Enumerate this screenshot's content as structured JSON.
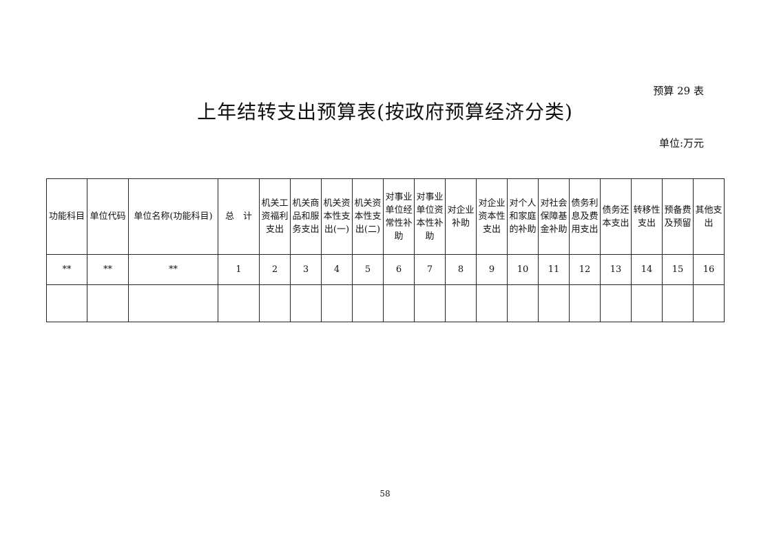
{
  "doc": {
    "code": "预算 29 表",
    "title": "上年结转支出预算表(按政府预算经济分类)",
    "unit": "单位:万元",
    "page_number": "58"
  },
  "table": {
    "headers": [
      "功能科目",
      "单位代码",
      "单位名称(功能科目)",
      "总　计",
      "机关工\n资福利\n支出",
      "机关商\n品和服\n务支出",
      "机关资\n本性支\n出(一)",
      "机关资\n本性支\n出(二)",
      "对事业\n单位经\n常性补\n助",
      "对事业\n单位资\n本性补\n助",
      "对企业\n补助",
      "对企业\n资本性\n支出",
      "对个人\n和家庭\n的补助",
      "对社会\n保障基\n金补助",
      "债务利\n息及费\n用支出",
      "债务还\n本支出",
      "转移性\n支出",
      "预备费\n及预留",
      "其他支\n出"
    ],
    "index_row": [
      "**",
      "**",
      "**",
      "1",
      "2",
      "3",
      "4",
      "5",
      "6",
      "7",
      "8",
      "9",
      "10",
      "11",
      "12",
      "13",
      "14",
      "15",
      "16"
    ],
    "empty_row": [
      "",
      "",
      "",
      "",
      "",
      "",
      "",
      "",
      "",
      "",
      "",
      "",
      "",
      "",
      "",
      "",
      "",
      "",
      ""
    ]
  }
}
